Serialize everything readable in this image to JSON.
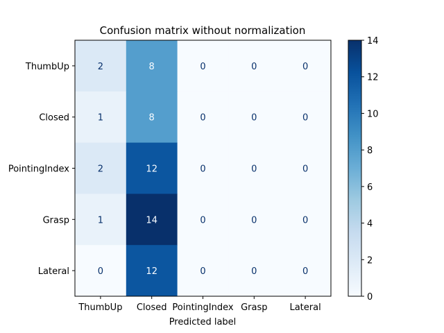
{
  "chart_data": {
    "type": "heatmap",
    "title": "Confusion matrix without normalization",
    "xlabel": "Predicted label",
    "ylabel": "",
    "x_categories": [
      "ThumbUp",
      "Closed",
      "PointingIndex",
      "Grasp",
      "Lateral"
    ],
    "y_categories": [
      "ThumbUp",
      "Closed",
      "PointingIndex",
      "Grasp",
      "Lateral"
    ],
    "values": [
      [
        2,
        8,
        0,
        0,
        0
      ],
      [
        1,
        8,
        0,
        0,
        0
      ],
      [
        2,
        12,
        0,
        0,
        0
      ],
      [
        1,
        14,
        0,
        0,
        0
      ],
      [
        0,
        12,
        0,
        0,
        0
      ]
    ],
    "colormap": "Blues",
    "colorbar": {
      "range": [
        0,
        14
      ],
      "ticks": [
        0,
        2,
        4,
        6,
        8,
        10,
        12,
        14
      ]
    },
    "colors": {
      "low": "#f7fbff",
      "high": "#08306b",
      "text_dark": "#08306b",
      "text_light": "#f7fbff"
    }
  }
}
